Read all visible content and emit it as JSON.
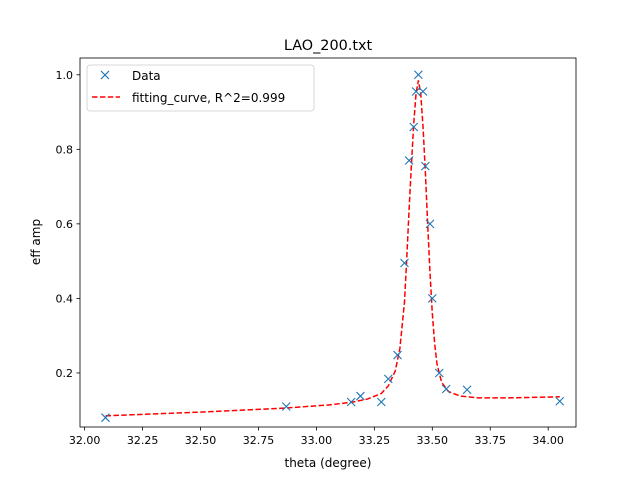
{
  "chart_data": {
    "type": "scatter",
    "title": "LAO_200.txt",
    "xlabel": "theta (degree)",
    "ylabel": "eff amp",
    "xlim": [
      31.98,
      34.12
    ],
    "ylim": [
      0.055,
      1.045
    ],
    "grid": false,
    "legend_position": "top-left",
    "x_ticks": [
      "32.00",
      "32.25",
      "32.50",
      "32.75",
      "33.00",
      "33.25",
      "33.50",
      "33.75",
      "34.00"
    ],
    "y_ticks": [
      "0.2",
      "0.4",
      "0.6",
      "0.8",
      "1.0"
    ],
    "series": [
      {
        "name": "Data",
        "kind": "scatter",
        "marker": "x",
        "color": "#1f77b4",
        "points": [
          [
            32.09,
            0.08
          ],
          [
            32.87,
            0.11
          ],
          [
            33.15,
            0.122
          ],
          [
            33.19,
            0.138
          ],
          [
            33.28,
            0.122
          ],
          [
            33.31,
            0.184
          ],
          [
            33.35,
            0.248
          ],
          [
            33.38,
            0.495
          ],
          [
            33.4,
            0.77
          ],
          [
            33.42,
            0.86
          ],
          [
            33.43,
            0.955
          ],
          [
            33.44,
            1.0
          ],
          [
            33.46,
            0.955
          ],
          [
            33.47,
            0.755
          ],
          [
            33.49,
            0.6
          ],
          [
            33.5,
            0.4
          ],
          [
            33.53,
            0.2
          ],
          [
            33.56,
            0.157
          ],
          [
            33.65,
            0.155
          ],
          [
            34.05,
            0.124
          ]
        ]
      },
      {
        "name": "fitting_curve, R^2=0.999",
        "kind": "line",
        "style": "dashed",
        "color": "#ff0000",
        "points": [
          [
            32.09,
            0.085
          ],
          [
            32.5,
            0.095
          ],
          [
            32.87,
            0.106
          ],
          [
            33.05,
            0.114
          ],
          [
            33.15,
            0.121
          ],
          [
            33.22,
            0.13
          ],
          [
            33.28,
            0.145
          ],
          [
            33.31,
            0.165
          ],
          [
            33.34,
            0.205
          ],
          [
            33.36,
            0.265
          ],
          [
            33.38,
            0.39
          ],
          [
            33.39,
            0.51
          ],
          [
            33.4,
            0.64
          ],
          [
            33.41,
            0.76
          ],
          [
            33.42,
            0.87
          ],
          [
            33.43,
            0.95
          ],
          [
            33.44,
            0.985
          ],
          [
            33.45,
            0.95
          ],
          [
            33.46,
            0.86
          ],
          [
            33.47,
            0.74
          ],
          [
            33.48,
            0.6
          ],
          [
            33.49,
            0.47
          ],
          [
            33.5,
            0.36
          ],
          [
            33.51,
            0.28
          ],
          [
            33.52,
            0.225
          ],
          [
            33.54,
            0.175
          ],
          [
            33.57,
            0.15
          ],
          [
            33.62,
            0.138
          ],
          [
            33.7,
            0.133
          ],
          [
            33.8,
            0.133
          ],
          [
            33.9,
            0.134
          ],
          [
            34.05,
            0.136
          ]
        ]
      }
    ]
  }
}
